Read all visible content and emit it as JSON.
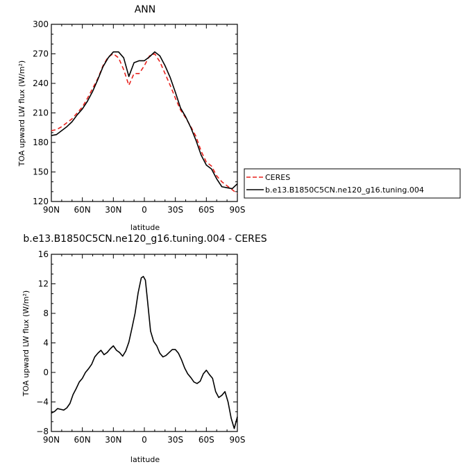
{
  "chart_data": [
    {
      "type": "line",
      "title": "ANN",
      "xlabel": "latitude",
      "ylabel": "TOA upward LW flux (W/m²)",
      "xlim": [
        -90,
        90
      ],
      "ylim": [
        120,
        300
      ],
      "xticks": [
        -90,
        -60,
        -30,
        0,
        30,
        60,
        90
      ],
      "xtick_labels": [
        "90N",
        "60N",
        "30N",
        "0",
        "30S",
        "60S",
        "90S"
      ],
      "yticks": [
        120,
        150,
        180,
        210,
        240,
        270,
        300
      ],
      "ytick_labels": [
        "120",
        "150",
        "180",
        "210",
        "240",
        "270",
        "300"
      ],
      "legend_position": "right",
      "series": [
        {
          "name": "CERES",
          "color": "#e8201b",
          "dash": "dashed",
          "x": [
            -90,
            -85,
            -80,
            -75,
            -70,
            -65,
            -60,
            -55,
            -50,
            -45,
            -40,
            -35,
            -30,
            -25,
            -20,
            -15,
            -10,
            -5,
            0,
            5,
            10,
            15,
            20,
            25,
            30,
            35,
            40,
            45,
            50,
            55,
            60,
            65,
            70,
            75,
            80,
            85,
            90
          ],
          "y": [
            192,
            193,
            196,
            200,
            204,
            210,
            216,
            225,
            235,
            245,
            258,
            267,
            270,
            266,
            254,
            238,
            250,
            250,
            258,
            268,
            270,
            262,
            250,
            238,
            225,
            213,
            205,
            196,
            186,
            171,
            160,
            156,
            146,
            140,
            136,
            132,
            128
          ]
        },
        {
          "name": "b.e13.B1850C5CN.ne120_g16.tuning.004",
          "color": "#000000",
          "dash": "solid",
          "x": [
            -90,
            -85,
            -80,
            -75,
            -70,
            -65,
            -60,
            -55,
            -50,
            -45,
            -40,
            -35,
            -30,
            -25,
            -20,
            -15,
            -10,
            -5,
            0,
            5,
            10,
            15,
            20,
            25,
            30,
            35,
            40,
            45,
            50,
            55,
            60,
            65,
            70,
            75,
            80,
            85,
            90
          ],
          "y": [
            187,
            188,
            192,
            196,
            201,
            208,
            214,
            222,
            232,
            244,
            257,
            266,
            272,
            272,
            266,
            247,
            261,
            263,
            263,
            267,
            272,
            268,
            258,
            246,
            231,
            215,
            206,
            195,
            182,
            167,
            157,
            153,
            143,
            135,
            134,
            133,
            138
          ]
        }
      ]
    },
    {
      "type": "line",
      "title": "b.e13.B1850C5CN.ne120_g16.tuning.004 - CERES",
      "xlabel": "latitude",
      "ylabel": "TOA upward LW flux (W/m²)",
      "xlim": [
        -90,
        90
      ],
      "ylim": [
        -8,
        16
      ],
      "xticks": [
        -90,
        -60,
        -30,
        0,
        30,
        60,
        90
      ],
      "xtick_labels": [
        "90N",
        "60N",
        "30N",
        "0",
        "30S",
        "60S",
        "90S"
      ],
      "yticks": [
        -8,
        -4,
        0,
        4,
        8,
        12,
        16
      ],
      "ytick_labels": [
        "−8",
        "−4",
        "0",
        "4",
        "8",
        "12",
        "16"
      ],
      "series": [
        {
          "color": "#000000",
          "dash": "solid",
          "x": [
            -90,
            -87,
            -84,
            -81,
            -78,
            -75,
            -72,
            -69,
            -66,
            -63,
            -60,
            -57,
            -54,
            -51,
            -48,
            -45,
            -42,
            -39,
            -36,
            -33,
            -30,
            -27,
            -24,
            -21,
            -18,
            -15,
            -12,
            -9,
            -6,
            -3,
            -1,
            1,
            3,
            6,
            9,
            12,
            15,
            18,
            21,
            24,
            27,
            30,
            33,
            36,
            39,
            42,
            45,
            48,
            51,
            54,
            57,
            60,
            63,
            66,
            69,
            72,
            75,
            78,
            81,
            84,
            87,
            90
          ],
          "y": [
            -5.5,
            -5.3,
            -4.9,
            -5.0,
            -5.1,
            -4.8,
            -4.2,
            -3.0,
            -2.2,
            -1.3,
            -0.8,
            0.0,
            0.5,
            1.1,
            2.1,
            2.6,
            3.0,
            2.4,
            2.7,
            3.2,
            3.6,
            3.0,
            2.7,
            2.2,
            2.9,
            4.1,
            6.0,
            8.0,
            10.8,
            12.8,
            13.0,
            12.5,
            9.8,
            5.6,
            4.2,
            3.6,
            2.6,
            2.1,
            2.3,
            2.7,
            3.1,
            3.1,
            2.6,
            1.7,
            0.6,
            -0.2,
            -0.7,
            -1.3,
            -1.5,
            -1.2,
            -0.2,
            0.3,
            -0.3,
            -0.8,
            -2.6,
            -3.4,
            -3.1,
            -2.6,
            -4.0,
            -6.2,
            -7.6,
            -6.0
          ]
        }
      ]
    }
  ]
}
